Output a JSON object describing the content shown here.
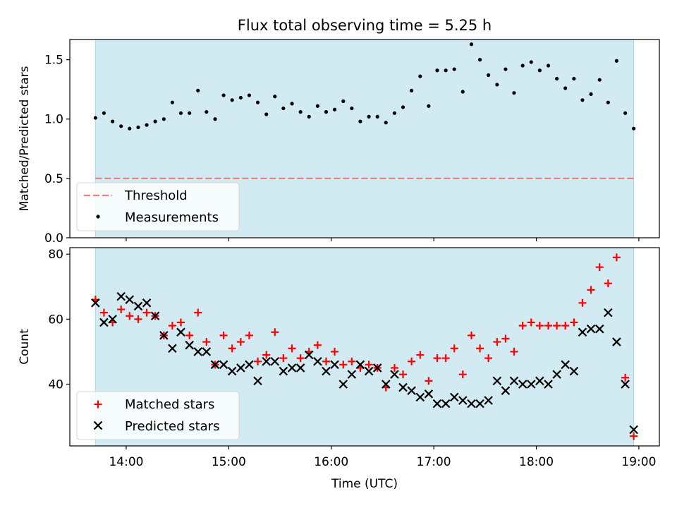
{
  "title": "Flux total observing time = 5.25 h",
  "colors": {
    "span": "#add8e6",
    "threshold": "#f08080",
    "matched": "#ff0000",
    "predicted": "#000000",
    "measurement": "#000000"
  },
  "chart_data": [
    {
      "type": "scatter",
      "ylabel": "Matched/Predicted stars",
      "xlim": [
        13.45,
        19.2
      ],
      "ylim": [
        0,
        1.67
      ],
      "yticks": [
        0.0,
        0.5,
        1.0,
        1.5
      ],
      "yticklabels": [
        "0.0",
        "0.5",
        "1.0",
        "1.5"
      ],
      "observing_span": [
        13.7,
        18.95
      ],
      "threshold": {
        "label": "Threshold",
        "y": 0.5
      },
      "legend": {
        "position": "lower-left",
        "entries": [
          "Threshold",
          "Measurements"
        ]
      },
      "series": [
        {
          "name": "Measurements",
          "x": [
            13.7,
            13.783,
            13.867,
            13.95,
            14.033,
            14.117,
            14.2,
            14.283,
            14.367,
            14.45,
            14.533,
            14.617,
            14.7,
            14.783,
            14.867,
            14.95,
            15.033,
            15.117,
            15.2,
            15.283,
            15.367,
            15.45,
            15.533,
            15.617,
            15.7,
            15.783,
            15.867,
            15.95,
            16.033,
            16.117,
            16.2,
            16.283,
            16.367,
            16.45,
            16.533,
            16.617,
            16.7,
            16.783,
            16.867,
            16.95,
            17.033,
            17.117,
            17.2,
            17.283,
            17.367,
            17.45,
            17.533,
            17.617,
            17.7,
            17.783,
            17.867,
            17.95,
            18.033,
            18.117,
            18.2,
            18.283,
            18.367,
            18.45,
            18.533,
            18.617,
            18.7,
            18.783,
            18.867,
            18.95
          ],
          "y": [
            1.01,
            1.05,
            0.98,
            0.94,
            0.92,
            0.93,
            0.95,
            0.98,
            1.0,
            1.14,
            1.05,
            1.05,
            1.24,
            1.06,
            1.0,
            1.2,
            1.16,
            1.18,
            1.2,
            1.14,
            1.04,
            1.19,
            1.09,
            1.13,
            1.06,
            1.02,
            1.11,
            1.06,
            1.08,
            1.15,
            1.09,
            0.98,
            1.02,
            1.02,
            0.97,
            1.05,
            1.1,
            1.24,
            1.36,
            1.11,
            1.41,
            1.41,
            1.42,
            1.23,
            1.63,
            1.5,
            1.37,
            1.29,
            1.42,
            1.22,
            1.45,
            1.48,
            1.41,
            1.45,
            1.34,
            1.26,
            1.34,
            1.16,
            1.21,
            1.33,
            1.14,
            1.49,
            1.05,
            0.92
          ]
        }
      ]
    },
    {
      "type": "scatter",
      "ylabel": "Count",
      "xlabel": "Time (UTC)",
      "xlim": [
        13.45,
        19.2
      ],
      "ylim": [
        21,
        82
      ],
      "yticks": [
        40,
        60,
        80
      ],
      "yticklabels": [
        "40",
        "60",
        "80"
      ],
      "xticks": [
        14,
        15,
        16,
        17,
        18,
        19
      ],
      "xticklabels": [
        "14:00",
        "15:00",
        "16:00",
        "17:00",
        "18:00",
        "19:00"
      ],
      "observing_span": [
        13.7,
        18.95
      ],
      "legend": {
        "position": "lower-left",
        "entries": [
          "Matched stars",
          "Predicted stars"
        ]
      },
      "x": [
        13.7,
        13.783,
        13.867,
        13.95,
        14.033,
        14.117,
        14.2,
        14.283,
        14.367,
        14.45,
        14.533,
        14.617,
        14.7,
        14.783,
        14.867,
        14.95,
        15.033,
        15.117,
        15.2,
        15.283,
        15.367,
        15.45,
        15.533,
        15.617,
        15.7,
        15.783,
        15.867,
        15.95,
        16.033,
        16.117,
        16.2,
        16.283,
        16.367,
        16.45,
        16.533,
        16.617,
        16.7,
        16.783,
        16.867,
        16.95,
        17.033,
        17.117,
        17.2,
        17.283,
        17.367,
        17.45,
        17.533,
        17.617,
        17.7,
        17.783,
        17.867,
        17.95,
        18.033,
        18.117,
        18.2,
        18.283,
        18.367,
        18.45,
        18.533,
        18.617,
        18.7,
        18.783,
        18.867,
        18.95
      ],
      "series": [
        {
          "name": "Matched stars",
          "marker": "plus",
          "values": [
            66,
            62,
            59,
            63,
            61,
            60,
            62,
            61,
            55,
            58,
            59,
            55,
            62,
            53,
            46,
            55,
            51,
            53,
            55,
            47,
            49,
            56,
            48,
            51,
            48,
            50,
            52,
            47,
            50,
            46,
            47,
            45,
            46,
            45,
            39,
            45,
            43,
            47,
            49,
            41,
            48,
            48,
            51,
            43,
            55,
            51,
            48,
            53,
            54,
            50,
            58,
            59,
            58,
            58,
            58,
            58,
            59,
            65,
            69,
            76,
            71,
            79,
            42,
            24
          ]
        },
        {
          "name": "Predicted stars",
          "marker": "x",
          "values": [
            65,
            59,
            60,
            67,
            66,
            64,
            65,
            61,
            55,
            51,
            56,
            52,
            50,
            50,
            46,
            46,
            44,
            45,
            46,
            41,
            47,
            47,
            44,
            45,
            45,
            49,
            47,
            44,
            46,
            40,
            43,
            46,
            44,
            45,
            40,
            43,
            39,
            38,
            36,
            37,
            34,
            34,
            36,
            35,
            34,
            34,
            35,
            41,
            38,
            41,
            40,
            40,
            41,
            40,
            43,
            46,
            44,
            56,
            57,
            57,
            62,
            53,
            40,
            26
          ]
        }
      ]
    }
  ]
}
